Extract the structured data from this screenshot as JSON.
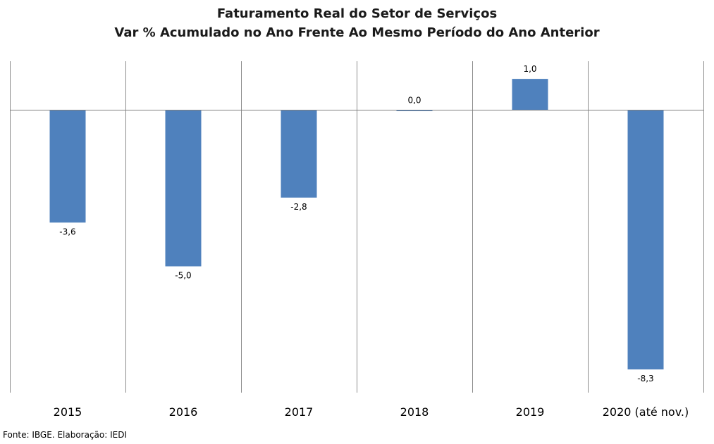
{
  "chart_data": {
    "type": "bar",
    "title": "Faturamento Real do Setor de Serviços",
    "subtitle": "Var % Acumulado no Ano Frente Ao Mesmo Período do Ano Anterior",
    "categories": [
      "2015",
      "2016",
      "2017",
      "2018",
      "2019",
      "2020 (até nov.)"
    ],
    "values": [
      -3.6,
      -5.0,
      -2.8,
      0.0,
      1.0,
      -8.3
    ],
    "value_labels": [
      "-3,6",
      "-5,0",
      "-2,8",
      "0,0",
      "1,0",
      "-8,3"
    ],
    "ylim": [
      -9,
      1.6
    ],
    "gridlines": "vertical category separators",
    "legend": "none",
    "bar_color": "#4f81bd"
  },
  "source": "Fonte: IBGE. Elaboração: IEDI"
}
